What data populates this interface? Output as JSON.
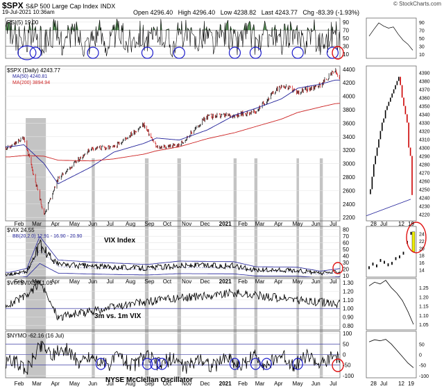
{
  "header": {
    "symbol": "$SPX",
    "name": "S&P 500 Large Cap Index",
    "exchange": "INDX",
    "datetime": "19-Jul-2021 10:36am",
    "open_label": "Open",
    "open": "4296.40",
    "high_label": "High",
    "high": "4296.40",
    "low_label": "Low",
    "low": "4238.82",
    "last_label": "Last",
    "last": "4243.77",
    "chg_label": "Chg",
    "chg": "-83.39 (-1.93%)",
    "credit": "© StockCharts.com"
  },
  "panels": {
    "rsi": {
      "label": "RSI(5) 19.00",
      "ticks": [
        "90",
        "70",
        "50",
        "30",
        "10"
      ]
    },
    "price": {
      "label": "$SPX (Daily) 4243.77",
      "ma50_label": "MA(50) 4240.81",
      "ma200_label": "MA(200) 3894.94",
      "ticks": [
        "4400",
        "4200",
        "4000",
        "3800",
        "3600",
        "3400",
        "3200",
        "3000",
        "2800",
        "2600",
        "2400",
        "2200"
      ],
      "detail_ticks": [
        "4390",
        "4380",
        "4370",
        "4360",
        "4350",
        "4340",
        "4330",
        "4320",
        "4310",
        "4300",
        "4290",
        "4280",
        "4270",
        "4260",
        "4250",
        "4240",
        "4230",
        "4220"
      ]
    },
    "vix": {
      "label": "$VIX 24.55",
      "bb_label": "BB(20,2.0) 12.91 - 16.90 - 20.90",
      "annotation": "VIX Index",
      "ticks": [
        "80",
        "70",
        "60",
        "50",
        "40",
        "30",
        "20",
        "10"
      ],
      "detail_ticks": [
        "24",
        "22",
        "20",
        "18",
        "16",
        "14"
      ]
    },
    "ratio": {
      "label": "$VIX:$VIX3M 1.05",
      "annotation": "3m vs. 1m VIX",
      "ticks": [
        "1.30",
        "1.20",
        "1.10",
        "1.00",
        "0.90",
        "0.80"
      ],
      "detail_ticks": [
        "1.25",
        "1.20",
        "1.15",
        "1.10",
        "1.05"
      ]
    },
    "nymo": {
      "label": "$NYMO -62.16 (16 Jul)",
      "annotation": "NYSE McClellan Oscillator",
      "ticks": [
        "100",
        "50",
        "0",
        "-50",
        "-100"
      ],
      "detail_ticks": [
        "50",
        "0",
        "-50",
        "-100"
      ]
    }
  },
  "x_axis": {
    "months": [
      "Feb",
      "Mar",
      "Apr",
      "May",
      "Jun",
      "Jul",
      "Aug",
      "Sep",
      "Oct",
      "Nov",
      "Dec",
      "2021",
      "Feb",
      "Mar",
      "Apr",
      "May",
      "Jun",
      "Jul"
    ],
    "detail": [
      "28",
      "Jul",
      "12",
      "19"
    ]
  },
  "colors": {
    "price_up": "#000000",
    "price_down": "#cc0000",
    "ma50": "#1f1f99",
    "ma200": "#cc2222",
    "rsi_fill": "#3a7a3a",
    "highlight": "#b0b0b0",
    "circle_blue": "#1a1acc",
    "circle_red": "#e01010",
    "vix_bar": "#eeee00"
  },
  "chart_data": [
    {
      "type": "line",
      "title": "RSI(5)",
      "ylim": [
        0,
        100
      ],
      "series": [
        {
          "name": "RSI(5)",
          "last": 19.0
        }
      ]
    },
    {
      "type": "line",
      "title": "$SPX (Daily)",
      "ylim": [
        2200,
        4400
      ],
      "x": [
        "2020-01-27",
        "2020-02-19",
        "2020-03-23",
        "2020-04-15",
        "2020-06-08",
        "2020-07-15",
        "2020-09-02",
        "2020-09-23",
        "2020-10-30",
        "2020-12-15",
        "2021-01-29",
        "2021-03-04",
        "2021-04-15",
        "2021-05-12",
        "2021-06-18",
        "2021-07-12",
        "2021-07-19"
      ],
      "series": [
        {
          "name": "$SPX",
          "values": [
            3240,
            3390,
            2240,
            2780,
            3230,
            3240,
            3580,
            3240,
            3270,
            3700,
            3720,
            3770,
            4170,
            4060,
            4170,
            4380,
            4243.77
          ]
        },
        {
          "name": "MA(50)",
          "values": [
            3250,
            3280,
            3000,
            2700,
            2950,
            3170,
            3300,
            3380,
            3350,
            3500,
            3720,
            3820,
            3960,
            4120,
            4180,
            4240,
            4240.81
          ]
        },
        {
          "name": "MA(200)",
          "values": [
            3100,
            3120,
            3110,
            3050,
            3040,
            3070,
            3140,
            3190,
            3250,
            3370,
            3460,
            3550,
            3660,
            3760,
            3840,
            3890,
            3894.94
          ]
        }
      ]
    },
    {
      "type": "line",
      "title": "$VIX",
      "ylim": [
        10,
        80
      ],
      "x": [
        "2020-01-27",
        "2020-02-24",
        "2020-03-16",
        "2020-04-15",
        "2020-06-11",
        "2020-09-08",
        "2020-10-30",
        "2021-01-27",
        "2021-03-04",
        "2021-05-12",
        "2021-06-18",
        "2021-07-19"
      ],
      "series": [
        {
          "name": "$VIX",
          "values": [
            18,
            25,
            82,
            40,
            36,
            32,
            38,
            37,
            28,
            27,
            20,
            24.55
          ]
        }
      ]
    },
    {
      "type": "line",
      "title": "$VIX:$VIX3M",
      "ylim": [
        0.75,
        1.35
      ],
      "x": [
        "2020-01-27",
        "2020-02-24",
        "2020-03-16",
        "2020-04-15",
        "2020-09-08",
        "2020-10-30",
        "2021-01-27",
        "2021-05-12",
        "2021-07-19"
      ],
      "series": [
        {
          "name": "$VIX:$VIX3M",
          "values": [
            1.05,
            1.15,
            1.3,
            0.9,
            1.08,
            1.12,
            1.18,
            1.1,
            1.05
          ]
        }
      ]
    },
    {
      "type": "line",
      "title": "$NYMO",
      "ylim": [
        -110,
        110
      ],
      "x": [
        "2020-02-24",
        "2020-03-23",
        "2020-06-11",
        "2020-09-23",
        "2020-10-30",
        "2021-01-29",
        "2021-03-04",
        "2021-05-12",
        "2021-07-16"
      ],
      "series": [
        {
          "name": "$NYMO",
          "values": [
            -95,
            70,
            -60,
            -55,
            -80,
            -65,
            -55,
            -50,
            -62.16
          ]
        }
      ]
    }
  ]
}
